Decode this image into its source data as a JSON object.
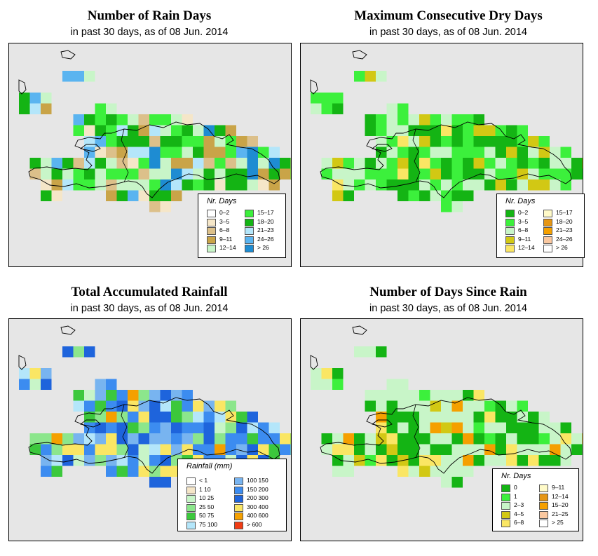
{
  "panels": [
    {
      "id": "rain-days",
      "title": "Number of Rain Days",
      "subtitle": "in past 30 days, as of  08 Jun. 2014",
      "legend_title": "Nr. Days",
      "legend": [
        {
          "label": "0–2",
          "color": "#ffffff"
        },
        {
          "label": "3–5",
          "color": "#f5e6c8"
        },
        {
          "label": "6–8",
          "color": "#dcc08a"
        },
        {
          "label": "9–11",
          "color": "#c9a448"
        },
        {
          "label": "12–14",
          "color": "#c8f5c8"
        },
        {
          "label": "15–17",
          "color": "#3cf03c"
        },
        {
          "label": "18–20",
          "color": "#14b414"
        },
        {
          "label": "21–23",
          "color": "#b4e6fa"
        },
        {
          "label": "24–26",
          "color": "#5ab4f0"
        },
        {
          "label": "> 26",
          "color": "#1e8cd2"
        }
      ]
    },
    {
      "id": "dry-days",
      "title": "Maximum Consecutive Dry Days",
      "subtitle": "in past 30 days, as of  08 Jun. 2014",
      "legend_title": "Nr. Days",
      "legend": [
        {
          "label": "0–2",
          "color": "#14b414"
        },
        {
          "label": "3–5",
          "color": "#3cf03c"
        },
        {
          "label": "6–8",
          "color": "#c8f5c8"
        },
        {
          "label": "9–11",
          "color": "#d2c814"
        },
        {
          "label": "12–14",
          "color": "#fae664"
        },
        {
          "label": "15–17",
          "color": "#fffac8"
        },
        {
          "label": "18–20",
          "color": "#e69614"
        },
        {
          "label": "21–23",
          "color": "#f5a000"
        },
        {
          "label": "24–26",
          "color": "#fac8a0"
        },
        {
          "label": "> 26",
          "color": "#ffffff"
        }
      ]
    },
    {
      "id": "rainfall",
      "title": "Total Accumulated Rainfall",
      "subtitle": "in past 30 days, as of  08 Jun. 2014",
      "legend_title": "Rainfall (mm)",
      "legend": [
        {
          "label": "< 1",
          "color": "#ffffff"
        },
        {
          "label": "1    10",
          "color": "#f5e6c8"
        },
        {
          "label": "10    25",
          "color": "#c8f5c8"
        },
        {
          "label": "25    50",
          "color": "#8ce68c"
        },
        {
          "label": "50    75",
          "color": "#3cc83c"
        },
        {
          "label": "75  100",
          "color": "#b4e6fa"
        },
        {
          "label": "100  150",
          "color": "#78b4f0"
        },
        {
          "label": "150  200",
          "color": "#3c8cf0"
        },
        {
          "label": "200  300",
          "color": "#1e64dc"
        },
        {
          "label": "300  400",
          "color": "#fae664"
        },
        {
          "label": "400  600",
          "color": "#f5a000"
        },
        {
          "label": "> 600",
          "color": "#f03c14"
        }
      ]
    },
    {
      "id": "days-since-rain",
      "title": "Number of Days Since Rain",
      "subtitle": "in past 30 days, as of  08 Jun. 2014",
      "legend_title": "Nr. Days",
      "legend": [
        {
          "label": "0",
          "color": "#14b414"
        },
        {
          "label": "1",
          "color": "#3cf03c"
        },
        {
          "label": "2–3",
          "color": "#c8f5c8"
        },
        {
          "label": "4–5",
          "color": "#d2c814"
        },
        {
          "label": "6–8",
          "color": "#fae664"
        },
        {
          "label": "9–11",
          "color": "#fffac8"
        },
        {
          "label": "12–14",
          "color": "#e69614"
        },
        {
          "label": "15–20",
          "color": "#f5a000"
        },
        {
          "label": "21–25",
          "color": "#fac8a0"
        },
        {
          "label": "> 25",
          "color": "#ffffff"
        }
      ]
    }
  ]
}
